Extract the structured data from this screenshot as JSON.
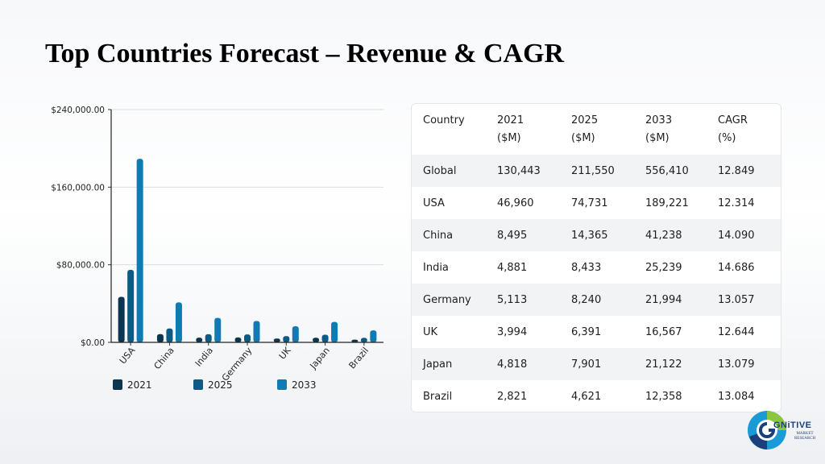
{
  "page": {
    "title": "Top Countries Forecast – Revenue & CAGR"
  },
  "chart_data": {
    "type": "bar",
    "categories": [
      "USA",
      "China",
      "India",
      "Germany",
      "UK",
      "Japan",
      "Brazil"
    ],
    "series": [
      {
        "name": "2021",
        "values": [
          46960,
          8495,
          4881,
          5113,
          3994,
          4818,
          2821
        ],
        "color": "#0b3550"
      },
      {
        "name": "2025",
        "values": [
          74731,
          14365,
          8433,
          8240,
          6391,
          7901,
          4621
        ],
        "color": "#0d5a86"
      },
      {
        "name": "2033",
        "values": [
          189221,
          41238,
          25239,
          21994,
          16567,
          21122,
          12358
        ],
        "color": "#0f7bb4"
      }
    ],
    "ylim": [
      0,
      240000
    ],
    "yticks": [
      0,
      80000,
      160000,
      240000
    ],
    "ytick_labels": [
      "$0.00",
      "$80,000.00",
      "$160,000.00",
      "$240,000.00"
    ],
    "grid": true,
    "legend_position": "bottom-left",
    "xlabel": "",
    "ylabel": ""
  },
  "table": {
    "headers": [
      [
        "Country",
        ""
      ],
      [
        "2021",
        "($M)"
      ],
      [
        "2025",
        "($M)"
      ],
      [
        "2033",
        "($M)"
      ],
      [
        "CAGR",
        "(%)"
      ]
    ],
    "rows": [
      [
        "Global",
        "130,443",
        "211,550",
        "556,410",
        "12.849"
      ],
      [
        "USA",
        "46,960",
        "74,731",
        "189,221",
        "12.314"
      ],
      [
        "China",
        "8,495",
        "14,365",
        "41,238",
        "14.090"
      ],
      [
        "India",
        "4,881",
        "8,433",
        "25,239",
        "14.686"
      ],
      [
        "Germany",
        "5,113",
        "8,240",
        "21,994",
        "13.057"
      ],
      [
        "UK",
        "3,994",
        "6,391",
        "16,567",
        "12.644"
      ],
      [
        "Japan",
        "4,818",
        "7,901",
        "21,122",
        "13.079"
      ],
      [
        "Brazil",
        "2,821",
        "4,621",
        "12,358",
        "13.084"
      ]
    ]
  },
  "logo": {
    "word": "GNiTIVE",
    "sub_line1": "MARKET",
    "sub_line2": "RESEARCH"
  }
}
